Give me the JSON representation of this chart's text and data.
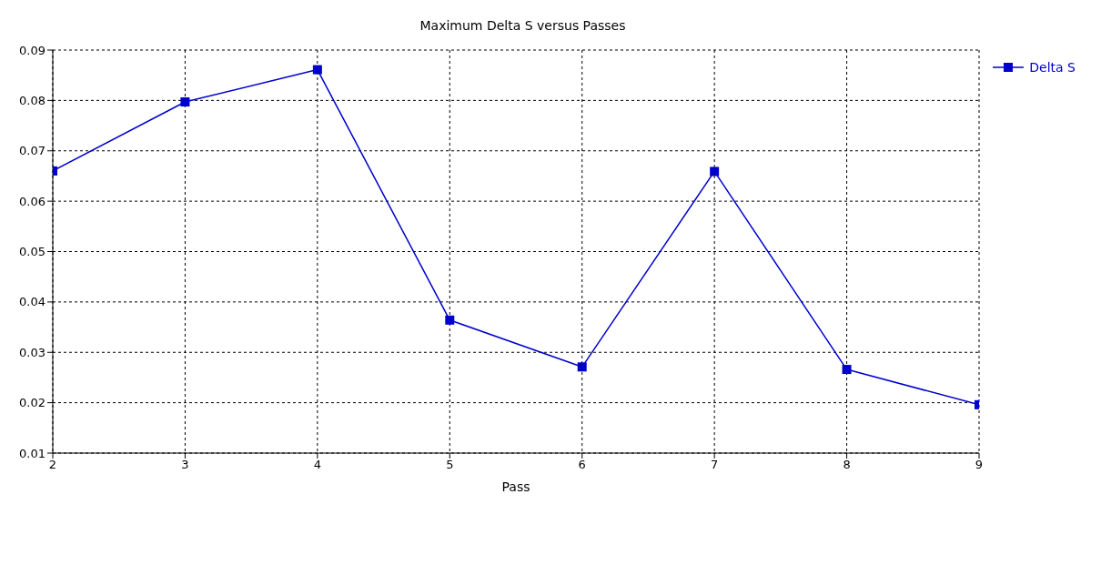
{
  "chart_data": {
    "type": "line",
    "title": "Maximum Delta S versus Passes",
    "xlabel": "Pass",
    "x": [
      2,
      3,
      4,
      5,
      6,
      7,
      8,
      9
    ],
    "series": [
      {
        "name": "Delta S",
        "color": "#0000cc",
        "values": [
          0.066,
          0.0797,
          0.0861,
          0.0364,
          0.0271,
          0.0659,
          0.0266,
          0.0196
        ]
      }
    ],
    "xlim": [
      2,
      9
    ],
    "xticks": [
      2,
      3,
      4,
      5,
      6,
      7,
      8,
      9
    ],
    "ylim": [
      0.01,
      0.09
    ],
    "yticks": [
      0.01,
      0.02,
      0.03,
      0.04,
      0.05,
      0.06,
      0.07,
      0.08,
      0.09
    ],
    "grid": true,
    "legend": "top right",
    "marker": "square",
    "line_style": "solid"
  }
}
